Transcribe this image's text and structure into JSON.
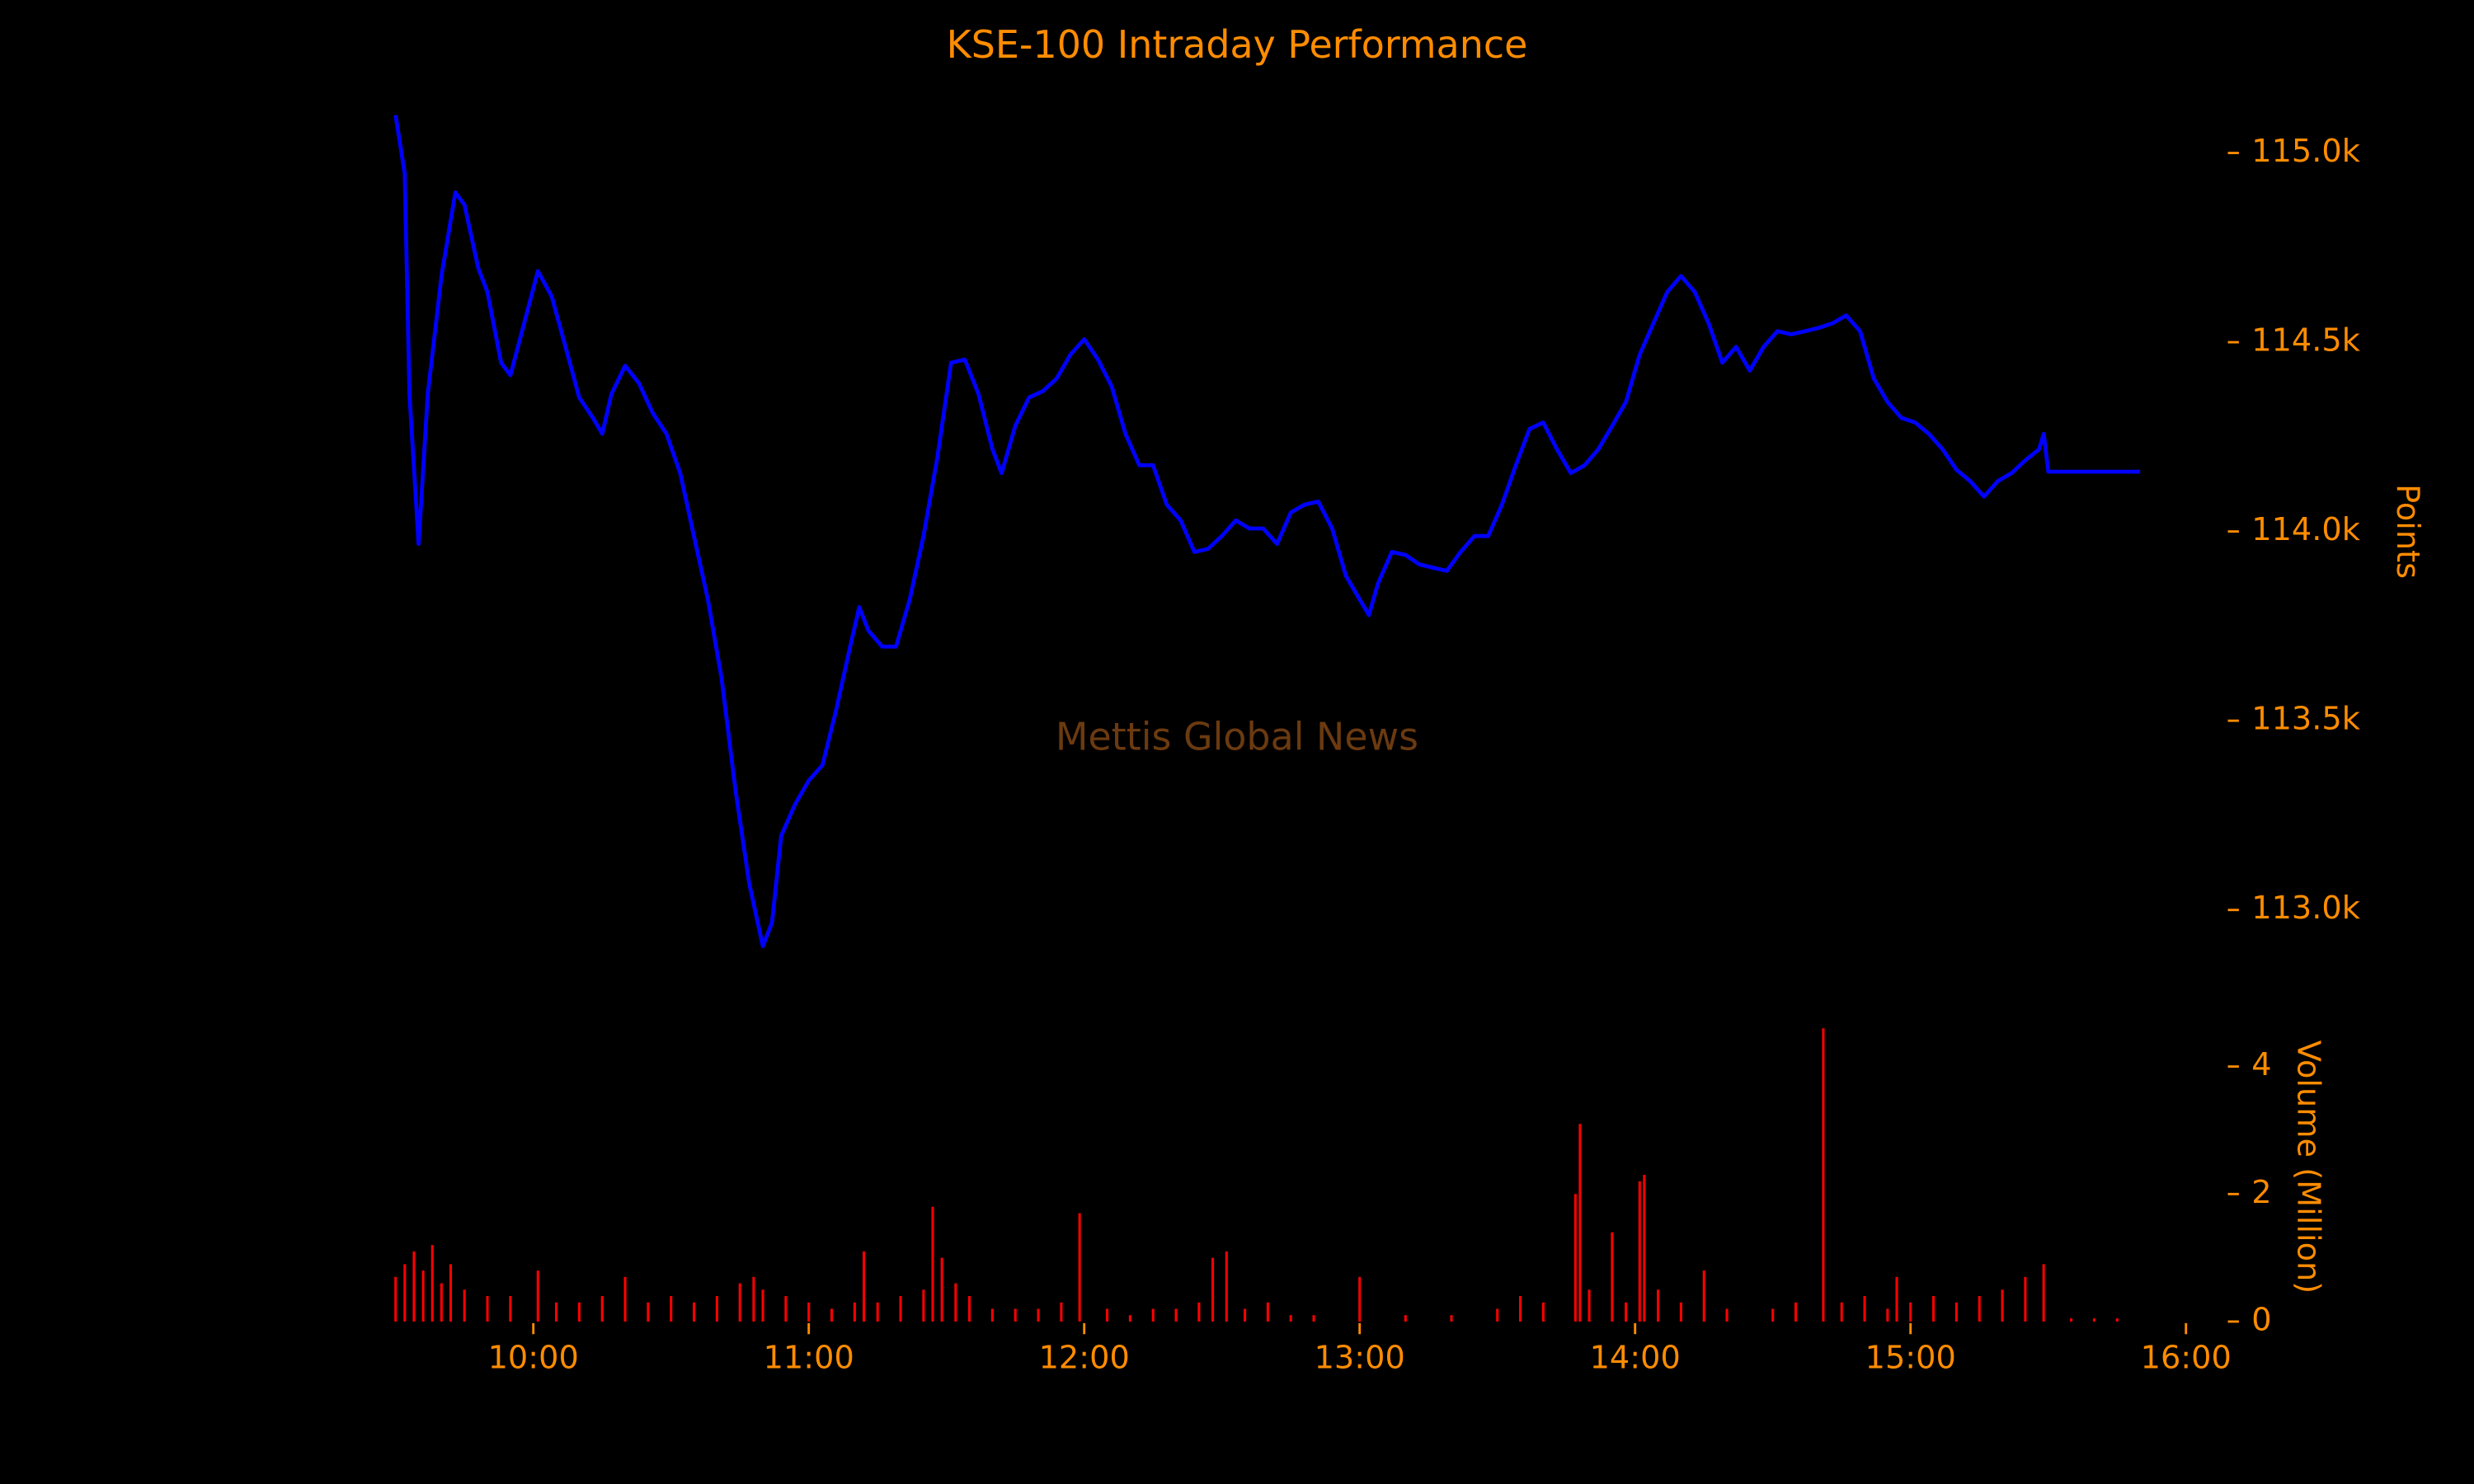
{
  "chart_data": [
    {
      "type": "line",
      "title": "KSE-100 Intraday Performance",
      "annotation": "Mettis Global News",
      "y_label": "Points",
      "color": "#0000ff",
      "xlim": [
        "09:27",
        "16:05"
      ],
      "ylim": [
        112800,
        115150
      ],
      "yticks": [
        {
          "value": 113000,
          "label": "113.0k"
        },
        {
          "value": 113500,
          "label": "113.5k"
        },
        {
          "value": 114000,
          "label": "114.0k"
        },
        {
          "value": 114500,
          "label": "114.5k"
        },
        {
          "value": 115000,
          "label": "115.0k"
        }
      ],
      "x": [
        "09:30",
        "09:32",
        "09:33",
        "09:35",
        "09:37",
        "09:40",
        "09:43",
        "09:45",
        "09:48",
        "09:50",
        "09:53",
        "09:55",
        "09:58",
        "10:01",
        "10:04",
        "10:07",
        "10:10",
        "10:13",
        "10:15",
        "10:17",
        "10:20",
        "10:23",
        "10:26",
        "10:29",
        "10:32",
        "10:35",
        "10:38",
        "10:41",
        "10:44",
        "10:47",
        "10:50",
        "10:52",
        "10:54",
        "10:57",
        "11:00",
        "11:03",
        "11:06",
        "11:09",
        "11:11",
        "11:13",
        "11:16",
        "11:19",
        "11:22",
        "11:25",
        "11:28",
        "11:31",
        "11:34",
        "11:37",
        "11:40",
        "11:42",
        "11:45",
        "11:48",
        "11:51",
        "11:54",
        "11:57",
        "12:00",
        "12:03",
        "12:06",
        "12:09",
        "12:12",
        "12:15",
        "12:18",
        "12:21",
        "12:24",
        "12:27",
        "12:30",
        "12:33",
        "12:36",
        "12:39",
        "12:42",
        "12:45",
        "12:48",
        "12:51",
        "12:54",
        "12:57",
        "13:00",
        "13:02",
        "13:04",
        "13:07",
        "13:10",
        "13:13",
        "13:16",
        "13:19",
        "13:22",
        "13:25",
        "13:28",
        "13:31",
        "13:34",
        "13:37",
        "13:40",
        "13:43",
        "13:46",
        "13:49",
        "13:52",
        "13:55",
        "13:58",
        "14:01",
        "14:04",
        "14:07",
        "14:10",
        "14:13",
        "14:16",
        "14:19",
        "14:22",
        "14:25",
        "14:28",
        "14:31",
        "14:34",
        "14:37",
        "14:40",
        "14:43",
        "14:46",
        "14:49",
        "14:52",
        "14:55",
        "14:58",
        "15:01",
        "15:04",
        "15:07",
        "15:10",
        "15:13",
        "15:16",
        "15:19",
        "15:22",
        "15:25",
        "15:28",
        "15:29",
        "15:30",
        "15:50"
      ],
      "values": [
        115100,
        114946,
        114363,
        113967,
        114363,
        114675,
        114896,
        114863,
        114696,
        114633,
        114446,
        114413,
        114550,
        114688,
        114621,
        114488,
        114354,
        114300,
        114258,
        114363,
        114438,
        114392,
        114313,
        114258,
        114154,
        113988,
        113821,
        113613,
        113321,
        113071,
        112904,
        112967,
        113196,
        113279,
        113342,
        113383,
        113529,
        113696,
        113800,
        113738,
        113696,
        113696,
        113821,
        113988,
        114196,
        114446,
        114454,
        114363,
        114217,
        114154,
        114279,
        114354,
        114371,
        114404,
        114467,
        114508,
        114454,
        114383,
        114258,
        114175,
        114175,
        114071,
        114029,
        113946,
        113954,
        113988,
        114029,
        114008,
        114008,
        113967,
        114050,
        114071,
        114079,
        114008,
        113883,
        113821,
        113779,
        113863,
        113946,
        113938,
        113913,
        113904,
        113896,
        113946,
        113988,
        113988,
        114071,
        114175,
        114271,
        114288,
        114217,
        114154,
        114175,
        114217,
        114279,
        114342,
        114467,
        114550,
        114633,
        114675,
        114633,
        114550,
        114446,
        114488,
        114425,
        114488,
        114529,
        114521,
        114529,
        114538,
        114550,
        114571,
        114529,
        114404,
        114342,
        114300,
        114288,
        114258,
        114217,
        114163,
        114133,
        114092,
        114133,
        114154,
        114188,
        114217,
        114258,
        114158,
        114158
      ]
    },
    {
      "type": "bar",
      "y_label": "Volume (Million)",
      "color": "#ff0000",
      "xlim": [
        "09:27",
        "16:05"
      ],
      "ylim": [
        0,
        4.7
      ],
      "yticks": [
        0,
        2,
        4
      ],
      "xticks": [
        "10:00",
        "11:00",
        "12:00",
        "13:00",
        "14:00",
        "15:00",
        "16:00"
      ],
      "x": [
        "09:30",
        "09:32",
        "09:34",
        "09:36",
        "09:38",
        "09:40",
        "09:42",
        "09:45",
        "09:50",
        "09:55",
        "10:01",
        "10:05",
        "10:10",
        "10:15",
        "10:20",
        "10:25",
        "10:30",
        "10:35",
        "10:40",
        "10:45",
        "10:48",
        "10:50",
        "10:55",
        "11:00",
        "11:05",
        "11:10",
        "11:12",
        "11:15",
        "11:20",
        "11:25",
        "11:27",
        "11:29",
        "11:32",
        "11:35",
        "11:40",
        "11:45",
        "11:50",
        "11:55",
        "11:59",
        "12:05",
        "12:10",
        "12:15",
        "12:20",
        "12:25",
        "12:28",
        "12:31",
        "12:35",
        "12:40",
        "12:45",
        "12:50",
        "13:00",
        "13:10",
        "13:20",
        "13:30",
        "13:35",
        "13:40",
        "13:47",
        "13:48",
        "13:50",
        "13:55",
        "13:58",
        "14:01",
        "14:02",
        "14:05",
        "14:10",
        "14:15",
        "14:20",
        "14:30",
        "14:35",
        "14:41",
        "14:45",
        "14:50",
        "14:55",
        "14:57",
        "15:00",
        "15:05",
        "15:10",
        "15:15",
        "15:20",
        "15:25",
        "15:29",
        "15:35",
        "15:40",
        "15:45"
      ],
      "values": [
        0.7,
        0.9,
        1.1,
        0.8,
        1.2,
        0.6,
        0.9,
        0.5,
        0.4,
        0.4,
        0.8,
        0.3,
        0.3,
        0.4,
        0.7,
        0.3,
        0.4,
        0.3,
        0.4,
        0.6,
        0.7,
        0.5,
        0.4,
        0.3,
        0.2,
        0.3,
        1.1,
        0.3,
        0.4,
        0.5,
        1.8,
        1.0,
        0.6,
        0.4,
        0.2,
        0.2,
        0.2,
        0.3,
        1.7,
        0.2,
        0.1,
        0.2,
        0.2,
        0.3,
        1.0,
        1.1,
        0.2,
        0.3,
        0.1,
        0.1,
        0.7,
        0.1,
        0.1,
        0.2,
        0.4,
        0.3,
        2.0,
        3.1,
        0.5,
        1.4,
        0.3,
        2.2,
        2.3,
        0.5,
        0.3,
        0.8,
        0.2,
        0.2,
        0.3,
        4.6,
        0.3,
        0.4,
        0.2,
        0.7,
        0.3,
        0.4,
        0.3,
        0.4,
        0.5,
        0.7,
        0.9,
        0.05,
        0.05,
        0.05
      ]
    }
  ]
}
